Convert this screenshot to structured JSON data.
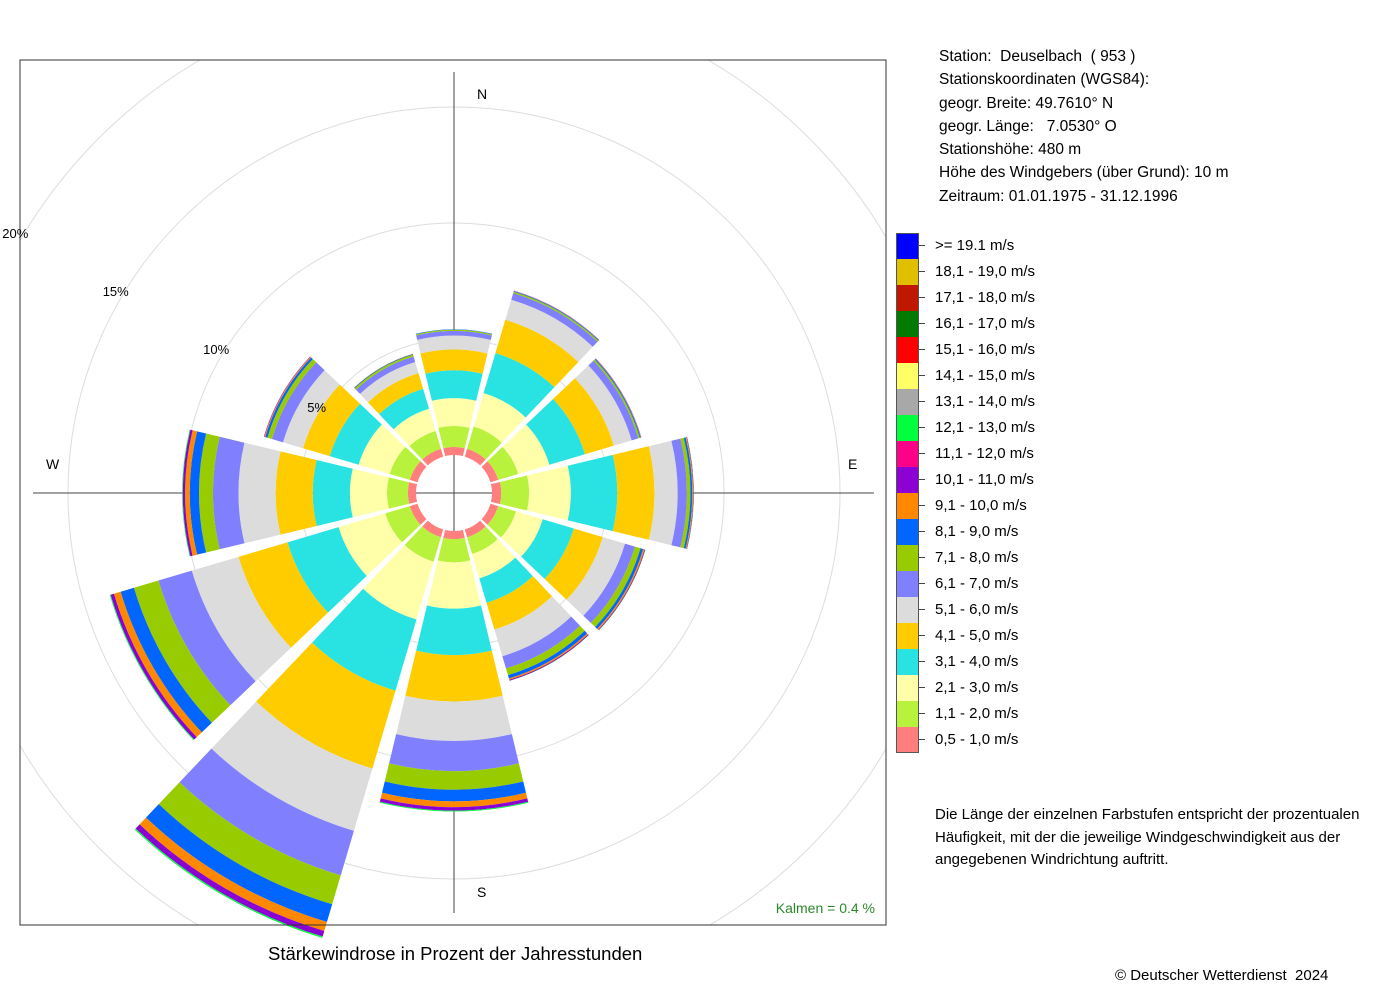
{
  "station": {
    "lines": [
      "Station:  Deuselbach  ( 953 )",
      "Stationskoordinaten (WGS84):",
      "geogr. Breite: 49.7610° N",
      "geogr. Länge:   7.0530° O",
      "Stationshöhe: 480 m",
      "Höhe des Windgebers (über Grund): 10 m",
      "Zeitraum: 01.01.1975 - 31.12.1996"
    ]
  },
  "legend": [
    {
      "label": ">= 19.1 m/s",
      "color": "#0000ff"
    },
    {
      "label": "18,1 - 19,0 m/s",
      "color": "#e0bf00"
    },
    {
      "label": "17,1 - 18,0 m/s",
      "color": "#c01800"
    },
    {
      "label": "16,1 - 17,0 m/s",
      "color": "#007a00"
    },
    {
      "label": "15,1 - 16,0 m/s",
      "color": "#ff0000"
    },
    {
      "label": "14,1 - 15,0 m/s",
      "color": "#ffff66"
    },
    {
      "label": "13,1 - 14,0 m/s",
      "color": "#a8a8a8"
    },
    {
      "label": "12,1 - 13,0 m/s",
      "color": "#00ff3c"
    },
    {
      "label": "11,1 - 12,0 m/s",
      "color": "#ff0088"
    },
    {
      "label": "10,1 - 11,0 m/s",
      "color": "#8c00d4"
    },
    {
      "label": "9,1 - 10,0 m/s",
      "color": "#ff8800"
    },
    {
      "label": "8,1 - 9,0 m/s",
      "color": "#0066ff"
    },
    {
      "label": "7,1 - 8,0 m/s",
      "color": "#99cc00"
    },
    {
      "label": "6,1 - 7,0 m/s",
      "color": "#8080ff"
    },
    {
      "label": "5,1 - 6,0 m/s",
      "color": "#dcdcdc"
    },
    {
      "label": "4,1 - 5,0 m/s",
      "color": "#ffcc00"
    },
    {
      "label": "3,1 - 4,0 m/s",
      "color": "#29e3e3"
    },
    {
      "label": "2,1 - 3,0 m/s",
      "color": "#ffffaa"
    },
    {
      "label": "1,1 - 2,0 m/s",
      "color": "#b8f23c"
    },
    {
      "label": "0,5 - 1,0 m/s",
      "color": "#ff7f7f"
    }
  ],
  "note": {
    "lines": [
      "Die Länge der einzelnen Farbstufen entspricht der prozentualen",
      "Häufigkeit, mit der die jeweilige Windgeschwindigkeit aus der",
      "angegebenen Windrichtung auftritt."
    ]
  },
  "caption": "Stärkewindrose in Prozent der Jahresstunden",
  "copyright": "© Deutscher Wetterdienst  2024",
  "chart_data": {
    "type": "windrose",
    "title": "Stärkewindrose in Prozent der Jahresstunden",
    "compass": {
      "N": "N",
      "E": "E",
      "S": "S",
      "W": "W"
    },
    "ring_labels": [
      "5%",
      "10%",
      "15%",
      "20%"
    ],
    "ring_values": [
      5,
      10,
      15,
      20
    ],
    "calm_text": "Kalmen  =  0.4 %",
    "calm_color": "#2a8a2a",
    "calm_percent": 0.4,
    "speed_classes": [
      "0,5 - 1,0 m/s",
      "1,1 - 2,0 m/s",
      "2,1 - 3,0 m/s",
      "3,1 - 4,0 m/s",
      "4,1 - 5,0 m/s",
      "5,1 - 6,0 m/s",
      "6,1 - 7,0 m/s",
      "7,1 - 8,0 m/s",
      "8,1 - 9,0 m/s",
      "9,1 - 10,0 m/s",
      "10,1 - 11,0 m/s",
      "11,1 - 12,0 m/s"
    ],
    "colors": [
      "#ff7f7f",
      "#b8f23c",
      "#ffffaa",
      "#29e3e3",
      "#ffcc00",
      "#dcdcdc",
      "#8080ff",
      "#99cc00",
      "#0066ff",
      "#ff8800",
      "#8c00d4",
      "#00ff3c"
    ],
    "sectors": [
      {
        "dir_deg": 0,
        "values": [
          0.35,
          0.9,
          1.2,
          1.2,
          0.9,
          0.6,
          0.2,
          0.05,
          0.02,
          0,
          0,
          0
        ]
      },
      {
        "dir_deg": 30,
        "values": [
          0.35,
          1.0,
          1.5,
          1.8,
          1.5,
          0.9,
          0.3,
          0.06,
          0.03,
          0.01,
          0.01,
          0
        ]
      },
      {
        "dir_deg": 60,
        "values": [
          0.35,
          0.9,
          1.4,
          1.6,
          1.3,
          0.8,
          0.3,
          0.07,
          0.04,
          0.02,
          0.01,
          0
        ]
      },
      {
        "dir_deg": 90,
        "values": [
          0.4,
          1.2,
          1.8,
          2.0,
          1.6,
          1.0,
          0.4,
          0.15,
          0.08,
          0.04,
          0.02,
          0.01
        ]
      },
      {
        "dir_deg": 120,
        "values": [
          0.35,
          0.8,
          1.2,
          1.4,
          1.3,
          1.0,
          0.45,
          0.25,
          0.12,
          0.06,
          0.03,
          0.01
        ]
      },
      {
        "dir_deg": 150,
        "values": [
          0.35,
          0.75,
          1.1,
          1.1,
          1.2,
          1.2,
          0.55,
          0.3,
          0.15,
          0.06,
          0.04,
          0.01
        ]
      },
      {
        "dir_deg": 180,
        "values": [
          0.35,
          1.0,
          2.0,
          2.0,
          2.0,
          1.7,
          1.3,
          0.8,
          0.5,
          0.25,
          0.15,
          0.04
        ]
      },
      {
        "dir_deg": 210,
        "values": [
          0.35,
          1.1,
          2.6,
          3.2,
          3.5,
          2.8,
          2.0,
          1.3,
          0.8,
          0.4,
          0.25,
          0.06
        ]
      },
      {
        "dir_deg": 240,
        "values": [
          0.35,
          1.1,
          2.1,
          2.3,
          2.2,
          2.1,
          1.5,
          1.1,
          0.6,
          0.3,
          0.15,
          0.04
        ]
      },
      {
        "dir_deg": 270,
        "values": [
          0.35,
          0.9,
          1.6,
          1.6,
          1.6,
          1.6,
          1.1,
          0.6,
          0.4,
          0.2,
          0.1,
          0.03
        ]
      },
      {
        "dir_deg": 300,
        "values": [
          0.35,
          0.9,
          1.4,
          1.3,
          1.2,
          0.9,
          0.5,
          0.2,
          0.1,
          0.04,
          0.02,
          0
        ]
      },
      {
        "dir_deg": 330,
        "values": [
          0.35,
          0.8,
          1.0,
          0.9,
          0.7,
          0.5,
          0.25,
          0.08,
          0.03,
          0.01,
          0,
          0
        ]
      }
    ]
  }
}
